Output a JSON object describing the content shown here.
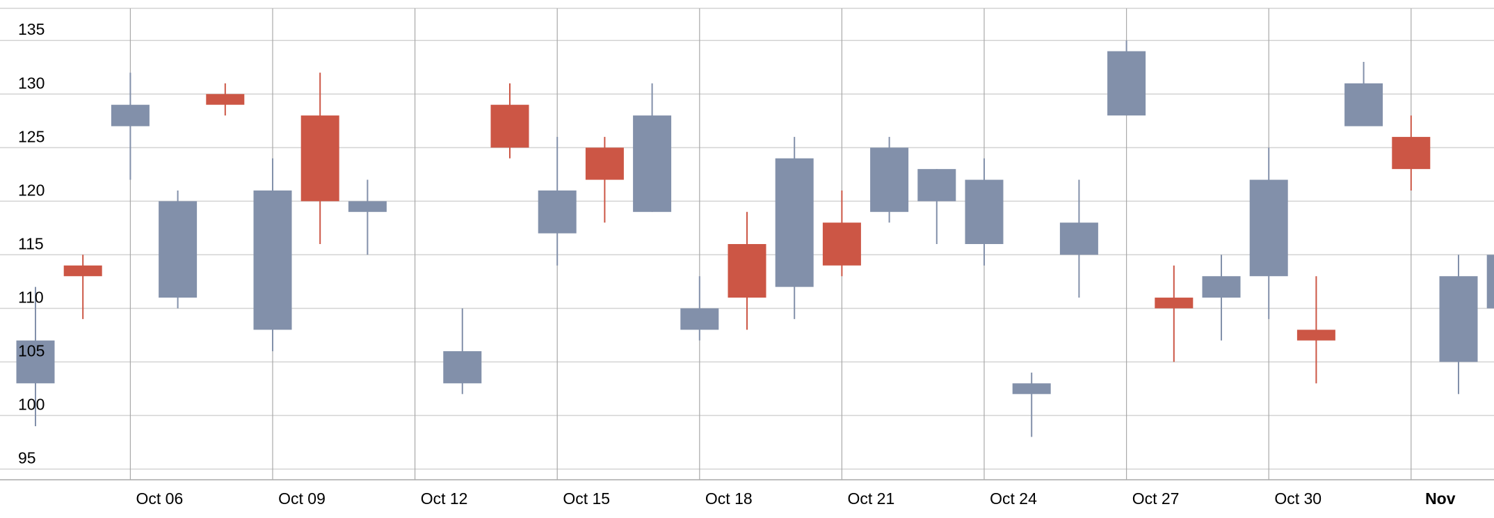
{
  "chart_data": {
    "type": "candlestick",
    "title": "",
    "xlabel": "",
    "ylabel": "",
    "ylim": [
      94,
      138
    ],
    "yticks": [
      95,
      100,
      105,
      110,
      115,
      120,
      125,
      130,
      135
    ],
    "xlim": [
      "2023-10-03",
      "2023-11-03"
    ],
    "x_ticks": [
      {
        "date": "2023-10-06",
        "label": "Oct 06",
        "bold": false
      },
      {
        "date": "2023-10-09",
        "label": "Oct 09",
        "bold": false
      },
      {
        "date": "2023-10-12",
        "label": "Oct 12",
        "bold": false
      },
      {
        "date": "2023-10-15",
        "label": "Oct 15",
        "bold": false
      },
      {
        "date": "2023-10-18",
        "label": "Oct 18",
        "bold": false
      },
      {
        "date": "2023-10-21",
        "label": "Oct 21",
        "bold": false
      },
      {
        "date": "2023-10-24",
        "label": "Oct 24",
        "bold": false
      },
      {
        "date": "2023-10-27",
        "label": "Oct 27",
        "bold": false
      },
      {
        "date": "2023-10-30",
        "label": "Oct 30",
        "bold": false
      },
      {
        "date": "2023-11-02",
        "label": "Nov",
        "bold": true
      }
    ],
    "colors": {
      "up": "#8290aa",
      "down": "#cc5645"
    },
    "grid": true,
    "candles": [
      {
        "date": "2023-10-04",
        "open": 103,
        "high": 112,
        "low": 99,
        "close": 107
      },
      {
        "date": "2023-10-05",
        "open": 114,
        "high": 115,
        "low": 109,
        "close": 113
      },
      {
        "date": "2023-10-06",
        "open": 127,
        "high": 132,
        "low": 122,
        "close": 129
      },
      {
        "date": "2023-10-07",
        "open": 111,
        "high": 121,
        "low": 110,
        "close": 120
      },
      {
        "date": "2023-10-08",
        "open": 130,
        "high": 131,
        "low": 128,
        "close": 129
      },
      {
        "date": "2023-10-09",
        "open": 108,
        "high": 124,
        "low": 106,
        "close": 121
      },
      {
        "date": "2023-10-10",
        "open": 128,
        "high": 132,
        "low": 116,
        "close": 120
      },
      {
        "date": "2023-10-11",
        "open": 119,
        "high": 122,
        "low": 115,
        "close": 120
      },
      {
        "date": "2023-10-13",
        "open": 103,
        "high": 110,
        "low": 102,
        "close": 106
      },
      {
        "date": "2023-10-14",
        "open": 129,
        "high": 131,
        "low": 124,
        "close": 125
      },
      {
        "date": "2023-10-15",
        "open": 117,
        "high": 126,
        "low": 114,
        "close": 121
      },
      {
        "date": "2023-10-16",
        "open": 125,
        "high": 126,
        "low": 118,
        "close": 122
      },
      {
        "date": "2023-10-17",
        "open": 119,
        "high": 131,
        "low": 119,
        "close": 128
      },
      {
        "date": "2023-10-18",
        "open": 108,
        "high": 113,
        "low": 107,
        "close": 110
      },
      {
        "date": "2023-10-19",
        "open": 116,
        "high": 119,
        "low": 108,
        "close": 111
      },
      {
        "date": "2023-10-20",
        "open": 112,
        "high": 126,
        "low": 109,
        "close": 124
      },
      {
        "date": "2023-10-21",
        "open": 118,
        "high": 121,
        "low": 113,
        "close": 114
      },
      {
        "date": "2023-10-22",
        "open": 119,
        "high": 126,
        "low": 118,
        "close": 125
      },
      {
        "date": "2023-10-23",
        "open": 120,
        "high": 123,
        "low": 116,
        "close": 123
      },
      {
        "date": "2023-10-24",
        "open": 116,
        "high": 124,
        "low": 114,
        "close": 122
      },
      {
        "date": "2023-10-25",
        "open": 102,
        "high": 104,
        "low": 98,
        "close": 103
      },
      {
        "date": "2023-10-26",
        "open": 115,
        "high": 122,
        "low": 111,
        "close": 118
      },
      {
        "date": "2023-10-27",
        "open": 128,
        "high": 135,
        "low": 128,
        "close": 134
      },
      {
        "date": "2023-10-28",
        "open": 111,
        "high": 114,
        "low": 105,
        "close": 110
      },
      {
        "date": "2023-10-29",
        "open": 111,
        "high": 115,
        "low": 107,
        "close": 113
      },
      {
        "date": "2023-10-30",
        "open": 113,
        "high": 125,
        "low": 109,
        "close": 122
      },
      {
        "date": "2023-10-31",
        "open": 108,
        "high": 113,
        "low": 103,
        "close": 107
      },
      {
        "date": "2023-11-01",
        "open": 127,
        "high": 133,
        "low": 127,
        "close": 131
      },
      {
        "date": "2023-11-02",
        "open": 126,
        "high": 128,
        "low": 121,
        "close": 123
      },
      {
        "date": "2023-11-03",
        "open": 105,
        "high": 115,
        "low": 102,
        "close": 113
      },
      {
        "date": "2023-11-04",
        "open": 110,
        "high": 119,
        "low": 107,
        "close": 115
      }
    ]
  }
}
